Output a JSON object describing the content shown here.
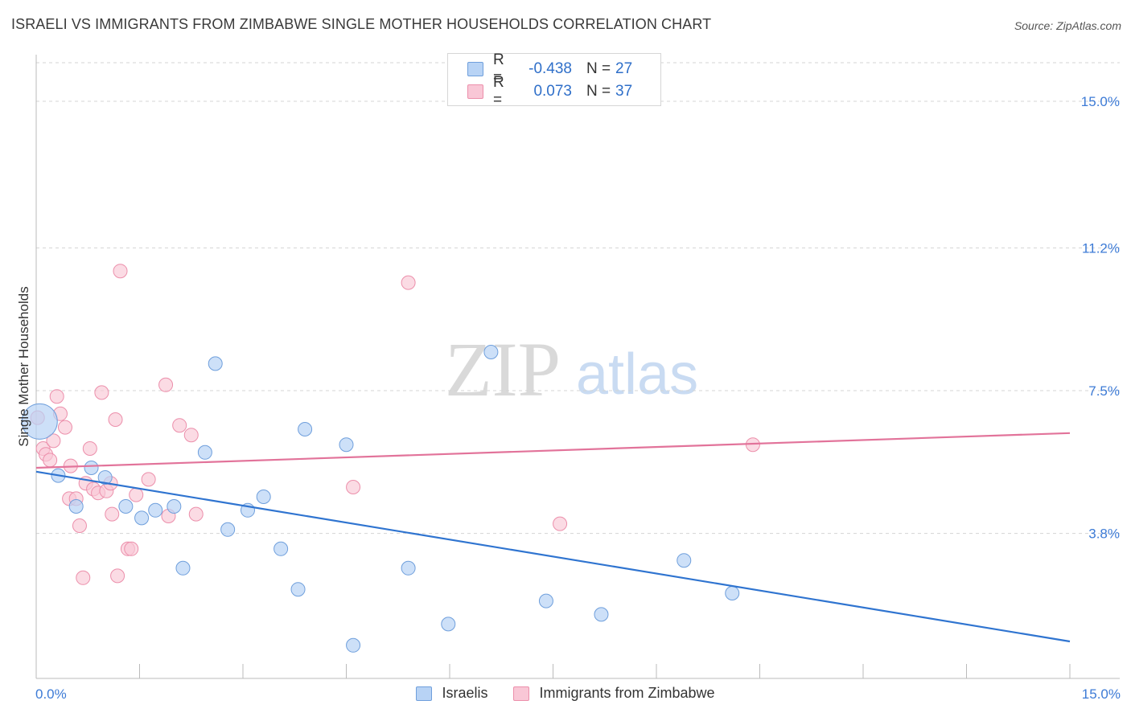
{
  "title": "ISRAELI VS IMMIGRANTS FROM ZIMBABWE SINGLE MOTHER HOUSEHOLDS CORRELATION CHART",
  "source": "Source: ZipAtlas.com",
  "watermark": {
    "zip": "ZIP",
    "atlas": "atlas"
  },
  "legend": {
    "r_label": "R =",
    "n_label": "N =",
    "rows": [
      {
        "r": "-0.438",
        "n": "27"
      },
      {
        "r": "0.073",
        "n": "37"
      }
    ]
  },
  "colors": {
    "israelis_fill": "#b8d3f5",
    "israelis_stroke": "#6f9fdc",
    "israelis_line": "#2f74d0",
    "zimbabwe_fill": "#f9c7d6",
    "zimbabwe_stroke": "#ec8fab",
    "zimbabwe_line": "#e2739a",
    "tick_label": "#3d7bd6",
    "grid": "#d4d4d4"
  },
  "chart_data": {
    "type": "scatter",
    "title": "ISRAELI VS IMMIGRANTS FROM ZIMBABWE SINGLE MOTHER HOUSEHOLDS CORRELATION CHART",
    "xlabel": "",
    "ylabel": "Single Mother Households",
    "xlim": [
      0,
      15
    ],
    "ylim": [
      0.5,
      16
    ],
    "x_tick_labels": [
      "0.0%",
      "15.0%"
    ],
    "y_ticks": [
      3.8,
      7.5,
      11.2,
      15.0
    ],
    "y_tick_labels": [
      "3.8%",
      "7.5%",
      "11.2%",
      "15.0%"
    ],
    "grid": true,
    "legend_position": "bottom",
    "series": [
      {
        "name": "Israelis",
        "color": "#6f9fdc",
        "trend": {
          "x": [
            0,
            15
          ],
          "y": [
            5.4,
            1.0
          ]
        },
        "points": [
          {
            "x": 0.05,
            "y": 6.7,
            "big": true
          },
          {
            "x": 0.32,
            "y": 5.3
          },
          {
            "x": 0.58,
            "y": 4.5
          },
          {
            "x": 0.8,
            "y": 5.5
          },
          {
            "x": 1.0,
            "y": 5.25
          },
          {
            "x": 1.3,
            "y": 4.5
          },
          {
            "x": 1.53,
            "y": 4.2
          },
          {
            "x": 1.73,
            "y": 4.4
          },
          {
            "x": 2.0,
            "y": 4.5
          },
          {
            "x": 2.13,
            "y": 2.9
          },
          {
            "x": 2.45,
            "y": 5.9
          },
          {
            "x": 2.6,
            "y": 8.2
          },
          {
            "x": 2.78,
            "y": 3.9
          },
          {
            "x": 3.07,
            "y": 4.4
          },
          {
            "x": 3.3,
            "y": 4.75
          },
          {
            "x": 3.55,
            "y": 3.4
          },
          {
            "x": 3.8,
            "y": 2.35
          },
          {
            "x": 3.9,
            "y": 6.5
          },
          {
            "x": 4.5,
            "y": 6.1
          },
          {
            "x": 4.6,
            "y": 0.9
          },
          {
            "x": 5.4,
            "y": 2.9
          },
          {
            "x": 5.98,
            "y": 1.45
          },
          {
            "x": 6.6,
            "y": 8.5
          },
          {
            "x": 7.4,
            "y": 2.05
          },
          {
            "x": 8.2,
            "y": 1.7
          },
          {
            "x": 9.4,
            "y": 3.1
          },
          {
            "x": 10.1,
            "y": 2.25
          }
        ]
      },
      {
        "name": "Immigrants from Zimbabwe",
        "color": "#ec8fab",
        "trend": {
          "x": [
            0,
            15
          ],
          "y": [
            5.5,
            6.4
          ]
        },
        "points": [
          {
            "x": 0.02,
            "y": 6.8
          },
          {
            "x": 0.1,
            "y": 6.0
          },
          {
            "x": 0.14,
            "y": 5.85
          },
          {
            "x": 0.2,
            "y": 5.7
          },
          {
            "x": 0.25,
            "y": 6.2
          },
          {
            "x": 0.3,
            "y": 7.35
          },
          {
            "x": 0.35,
            "y": 6.9
          },
          {
            "x": 0.42,
            "y": 6.55
          },
          {
            "x": 0.48,
            "y": 4.7
          },
          {
            "x": 0.5,
            "y": 5.55
          },
          {
            "x": 0.58,
            "y": 4.7
          },
          {
            "x": 0.63,
            "y": 4.0
          },
          {
            "x": 0.68,
            "y": 2.65
          },
          {
            "x": 0.72,
            "y": 5.1
          },
          {
            "x": 0.78,
            "y": 6.0
          },
          {
            "x": 0.83,
            "y": 4.95
          },
          {
            "x": 0.9,
            "y": 4.85
          },
          {
            "x": 0.95,
            "y": 7.45
          },
          {
            "x": 1.02,
            "y": 4.9
          },
          {
            "x": 1.08,
            "y": 5.1
          },
          {
            "x": 1.1,
            "y": 4.3
          },
          {
            "x": 1.15,
            "y": 6.75
          },
          {
            "x": 1.18,
            "y": 2.7
          },
          {
            "x": 1.22,
            "y": 10.6
          },
          {
            "x": 1.33,
            "y": 3.4
          },
          {
            "x": 1.38,
            "y": 3.4
          },
          {
            "x": 1.45,
            "y": 4.8
          },
          {
            "x": 1.63,
            "y": 5.2
          },
          {
            "x": 1.88,
            "y": 7.65
          },
          {
            "x": 1.92,
            "y": 4.25
          },
          {
            "x": 2.08,
            "y": 6.6
          },
          {
            "x": 2.25,
            "y": 6.35
          },
          {
            "x": 2.32,
            "y": 4.3
          },
          {
            "x": 4.6,
            "y": 5.0
          },
          {
            "x": 5.4,
            "y": 10.3
          },
          {
            "x": 7.6,
            "y": 4.05
          },
          {
            "x": 10.4,
            "y": 6.1
          }
        ]
      }
    ]
  }
}
